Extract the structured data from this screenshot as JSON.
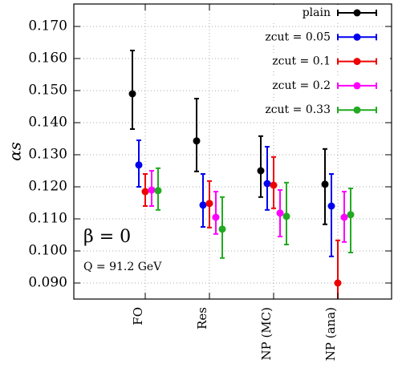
{
  "chart_data": {
    "type": "errorbar",
    "ylabel": "αs",
    "annotations": [
      "β = 0",
      "Q = 91.2 GeV"
    ],
    "categories": [
      "FO",
      "Res",
      "NP (MC)",
      "NP (ana)"
    ],
    "ylim": [
      0.085,
      0.177
    ],
    "yticks": [
      {
        "value": 0.09,
        "label": "0.090"
      },
      {
        "value": 0.1,
        "label": "0.100"
      },
      {
        "value": 0.11,
        "label": "0.110"
      },
      {
        "value": 0.12,
        "label": "0.120"
      },
      {
        "value": 0.13,
        "label": "0.130"
      },
      {
        "value": 0.14,
        "label": "0.140"
      },
      {
        "value": 0.15,
        "label": "0.150"
      },
      {
        "value": 0.16,
        "label": "0.160"
      },
      {
        "value": 0.17,
        "label": "0.170"
      }
    ],
    "grid": true,
    "legend": "top-right",
    "series": [
      {
        "name": "plain",
        "color": "#000000",
        "values": [
          0.149,
          0.1343,
          0.125,
          0.1208
        ],
        "lower": [
          0.138,
          0.1248,
          0.1168,
          0.1083
        ],
        "upper": [
          0.1625,
          0.1475,
          0.1358,
          0.1318
        ]
      },
      {
        "name": "zcut = 0.05",
        "color": "#0000ee",
        "values": [
          0.1268,
          0.1143,
          0.121,
          0.114
        ],
        "lower": [
          0.12,
          0.1075,
          0.1128,
          0.0983
        ],
        "upper": [
          0.1345,
          0.124,
          0.1325,
          0.124
        ]
      },
      {
        "name": "zcut = 0.1",
        "color": "#ee0000",
        "values": [
          0.1185,
          0.1148,
          0.1205,
          0.09
        ],
        "lower": [
          0.114,
          0.1073,
          0.1133,
          0.082
        ],
        "upper": [
          0.124,
          0.1218,
          0.1293,
          0.1033
        ]
      },
      {
        "name": "zcut = 0.2",
        "color": "#ff00ff",
        "values": [
          0.119,
          0.1105,
          0.1118,
          0.1105
        ],
        "lower": [
          0.114,
          0.1053,
          0.1045,
          0.1028
        ],
        "upper": [
          0.125,
          0.1185,
          0.119,
          0.1185
        ]
      },
      {
        "name": "zcut = 0.33",
        "color": "#22aa22",
        "values": [
          0.1188,
          0.1068,
          0.1108,
          0.1113
        ],
        "lower": [
          0.1128,
          0.0978,
          0.102,
          0.0995
        ],
        "upper": [
          0.1258,
          0.1168,
          0.1213,
          0.1195
        ]
      }
    ]
  }
}
